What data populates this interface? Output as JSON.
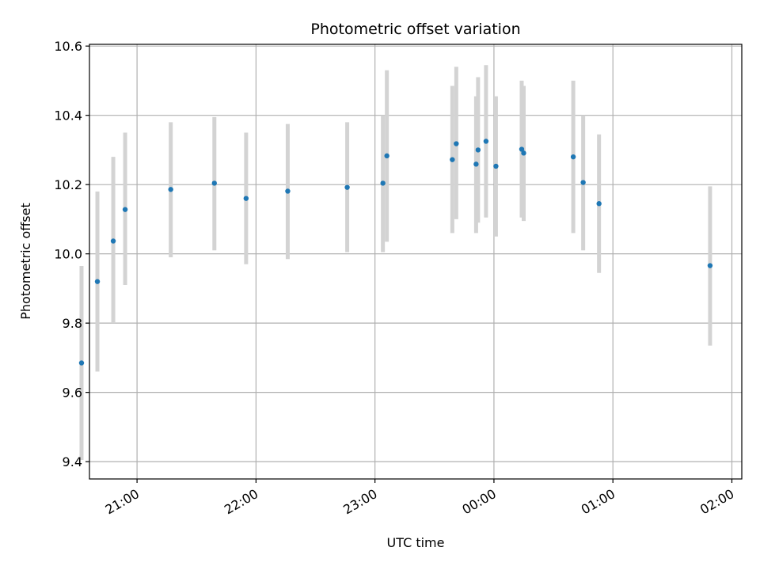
{
  "chart_data": {
    "type": "scatter",
    "title": "Photometric offset variation",
    "xlabel": "UTC time",
    "ylabel": "Photometric offset",
    "x_ticks": [
      "21:00",
      "22:00",
      "23:00",
      "00:00",
      "01:00",
      "02:00"
    ],
    "y_ticks": [
      "9.4",
      "9.6",
      "9.8",
      "10.0",
      "10.2",
      "10.4",
      "10.6"
    ],
    "xlim": [
      "20:36",
      "02:05"
    ],
    "ylim": [
      9.35,
      10.605
    ],
    "grid": true,
    "colors": {
      "point": "#1f77b4",
      "errorbar": "#d3d3d3",
      "grid": "#b0b0b0"
    },
    "series": [
      {
        "points": [
          {
            "time": "20:32",
            "y": 9.685,
            "err_low": 9.405,
            "err_high": 9.965
          },
          {
            "time": "20:40",
            "y": 9.92,
            "err_low": 9.66,
            "err_high": 10.18
          },
          {
            "time": "20:48",
            "y": 10.037,
            "err_low": 9.8,
            "err_high": 10.28
          },
          {
            "time": "20:54",
            "y": 10.128,
            "err_low": 9.91,
            "err_high": 10.35
          },
          {
            "time": "21:17",
            "y": 10.186,
            "err_low": 9.99,
            "err_high": 10.38
          },
          {
            "time": "21:39",
            "y": 10.204,
            "err_low": 10.01,
            "err_high": 10.395
          },
          {
            "time": "21:55",
            "y": 10.16,
            "err_low": 9.97,
            "err_high": 10.35
          },
          {
            "time": "22:16",
            "y": 10.181,
            "err_low": 9.985,
            "err_high": 10.375
          },
          {
            "time": "22:46",
            "y": 10.192,
            "err_low": 10.005,
            "err_high": 10.38
          },
          {
            "time": "23:04",
            "y": 10.204,
            "err_low": 10.005,
            "err_high": 10.4
          },
          {
            "time": "23:06",
            "y": 10.283,
            "err_low": 10.035,
            "err_high": 10.53
          },
          {
            "time": "23:39",
            "y": 10.272,
            "err_low": 10.06,
            "err_high": 10.485
          },
          {
            "time": "23:41",
            "y": 10.318,
            "err_low": 10.1,
            "err_high": 10.54
          },
          {
            "time": "23:51",
            "y": 10.259,
            "err_low": 10.06,
            "err_high": 10.455
          },
          {
            "time": "23:52",
            "y": 10.3,
            "err_low": 10.09,
            "err_high": 10.51
          },
          {
            "time": "23:56",
            "y": 10.325,
            "err_low": 10.105,
            "err_high": 10.545
          },
          {
            "time": "00:01",
            "y": 10.253,
            "err_low": 10.05,
            "err_high": 10.455
          },
          {
            "time": "00:14",
            "y": 10.302,
            "err_low": 10.105,
            "err_high": 10.5
          },
          {
            "time": "00:15",
            "y": 10.291,
            "err_low": 10.095,
            "err_high": 10.485
          },
          {
            "time": "00:40",
            "y": 10.28,
            "err_low": 10.06,
            "err_high": 10.5
          },
          {
            "time": "00:45",
            "y": 10.206,
            "err_low": 10.01,
            "err_high": 10.4
          },
          {
            "time": "00:53",
            "y": 10.145,
            "err_low": 9.945,
            "err_high": 10.345
          },
          {
            "time": "01:49",
            "y": 9.966,
            "err_low": 9.735,
            "err_high": 10.195
          }
        ]
      }
    ]
  }
}
